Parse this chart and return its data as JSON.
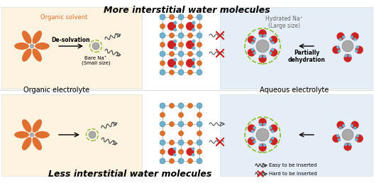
{
  "title_top": "More interstitial water molecules",
  "title_bottom": "Less interstitial water molecules",
  "label_organic": "Organic electrolyte",
  "label_aqueous": "Aqueous electrolyte",
  "label_organic_solvent": "Organic solvent",
  "label_desolvation": "De-solvation",
  "label_bare_na": "Bare Na⁺\n(Small size)",
  "label_hydrated_na": "Hydrated Na⁺\n(Large size)",
  "label_partial_dehyd": "Partially\ndehydration",
  "legend_easy": "Easy to be inserted",
  "legend_hard": "Hard to be inserted",
  "bg_organic": "#fdf3e0",
  "bg_aqueous": "#e5eef7",
  "color_orange": "#e07030",
  "color_red": "#cc2222",
  "color_blue": "#70b0cc",
  "color_green": "#88bb33",
  "color_gray_center": "#aaaaaa",
  "color_dark": "#222222",
  "color_line": "#999999"
}
